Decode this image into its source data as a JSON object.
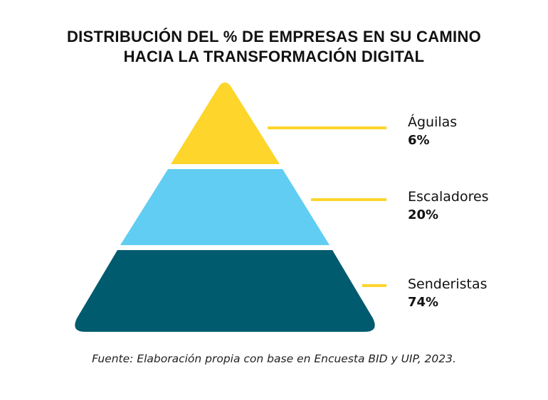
{
  "title": {
    "line1": "DISTRIBUCIÓN DEL % DE EMPRESAS EN SU CAMINO",
    "line2": "HACIA LA TRANSFORMACIÓN DIGITAL"
  },
  "levels": [
    {
      "name": "Águilas",
      "value_label": "6%",
      "value": 6,
      "color": "#FDD52B"
    },
    {
      "name": "Escaladores",
      "value_label": "20%",
      "value": 20,
      "color": "#61CDF2"
    },
    {
      "name": "Senderistas",
      "value_label": "74%",
      "value": 74,
      "color": "#005B6E"
    }
  ],
  "connector_color": "#FDD52B",
  "source": "Fuente: Elaboración propia con base en Encuesta BID y UIP, 2023."
}
